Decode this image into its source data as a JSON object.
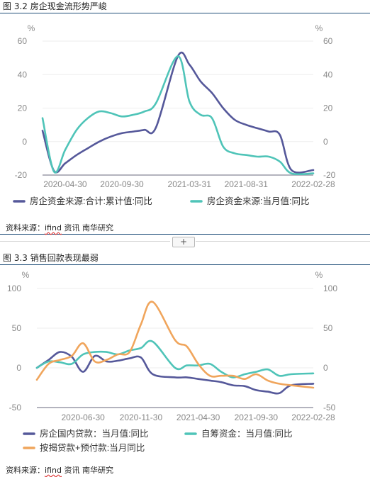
{
  "fig1": {
    "title": "图 3.2 房企现金流形势严峻",
    "source_prefix": "资料来源：",
    "source_ifind": "ifind",
    "source_suffix": " 资讯   南华研究"
  },
  "fig2": {
    "title": "图 3.3 销售回款表现最弱",
    "source_prefix": "资料来源：",
    "source_ifind": "ifind",
    "source_suffix": " 资讯   南华研究"
  },
  "expand_button": "+",
  "chart_data": [
    {
      "type": "line",
      "title": "",
      "ylabel_left": "%",
      "ylabel_right": "%",
      "ylim": [
        -20,
        60
      ],
      "yticks": [
        -20,
        0,
        20,
        40,
        60
      ],
      "grid": true,
      "legend_position": "bottom",
      "xticks": [
        "2020-04-30",
        "2020-09-30",
        "2021-03-31",
        "2021-08-31",
        "2022-02-28"
      ],
      "x": [
        "2020-02-29",
        "2020-03-31",
        "2020-04-30",
        "2020-05-31",
        "2020-06-30",
        "2020-07-31",
        "2020-08-31",
        "2020-09-30",
        "2020-10-31",
        "2020-11-30",
        "2020-12-31",
        "2021-02-28",
        "2021-03-31",
        "2021-04-30",
        "2021-05-31",
        "2021-06-30",
        "2021-07-31",
        "2021-08-31",
        "2021-09-30",
        "2021-10-31",
        "2021-11-30",
        "2021-12-31",
        "2022-02-28"
      ],
      "series": [
        {
          "name": "房企资金来源:合计:累计值:同比",
          "color": "#55589a",
          "values": [
            6.5,
            -17.5,
            -13,
            -8,
            -4,
            0,
            3,
            5,
            6,
            7,
            8.5,
            51,
            46,
            36,
            29,
            20,
            13,
            10,
            8,
            6,
            4,
            -17,
            -17
          ]
        },
        {
          "name": "房企资金来源:当月值:同比",
          "color": "#4fc4b8",
          "values": [
            14,
            -18,
            -5,
            7,
            14,
            18,
            17,
            15,
            16,
            18,
            23,
            51,
            24,
            16,
            14,
            -3,
            -7,
            -8,
            -9,
            -9,
            -12,
            -19,
            -19
          ]
        }
      ]
    },
    {
      "type": "line",
      "title": "",
      "ylabel_left": "%",
      "ylabel_right": "%",
      "ylim": [
        -50,
        100
      ],
      "yticks": [
        -50,
        0,
        50,
        100
      ],
      "grid": true,
      "legend_position": "bottom",
      "xticks": [
        "2020-06-30",
        "2020-11-30",
        "2021-04-30",
        "2021-09-30",
        "2022-02-28"
      ],
      "x": [
        "2020-02-29",
        "2020-03-31",
        "2020-04-30",
        "2020-05-31",
        "2020-06-30",
        "2020-07-31",
        "2020-08-31",
        "2020-09-30",
        "2020-10-31",
        "2020-11-30",
        "2020-12-31",
        "2021-02-28",
        "2021-03-31",
        "2021-04-30",
        "2021-05-31",
        "2021-06-30",
        "2021-07-31",
        "2021-08-31",
        "2021-09-30",
        "2021-10-31",
        "2021-11-30",
        "2021-12-31",
        "2022-02-28"
      ],
      "series": [
        {
          "name": "房企国内贷款：当月值:同比",
          "color": "#55589a",
          "values": [
            0,
            10,
            20,
            14,
            -5,
            15,
            8,
            9,
            12,
            13,
            -8,
            -12,
            -12,
            -14,
            -16,
            -18,
            -22,
            -23,
            -28,
            -30,
            -32,
            -22,
            -20
          ]
        },
        {
          "name": "自筹资金：当月值:同比",
          "color": "#4fc4b8",
          "values": [
            0,
            8,
            7,
            5,
            17,
            20,
            20,
            17,
            22,
            25,
            33,
            0,
            3,
            3,
            5,
            -5,
            -12,
            -8,
            -5,
            -2,
            -10,
            -8,
            -7
          ]
        },
        {
          "name": "按揭贷款+预付款:当月同比",
          "color": "#f0a55c",
          "values": [
            -15,
            5,
            10,
            15,
            31,
            8,
            10,
            17,
            20,
            55,
            83,
            35,
            27,
            5,
            -10,
            -10,
            -10,
            -14,
            -8,
            -16,
            -20,
            -22,
            -25
          ]
        }
      ]
    }
  ]
}
